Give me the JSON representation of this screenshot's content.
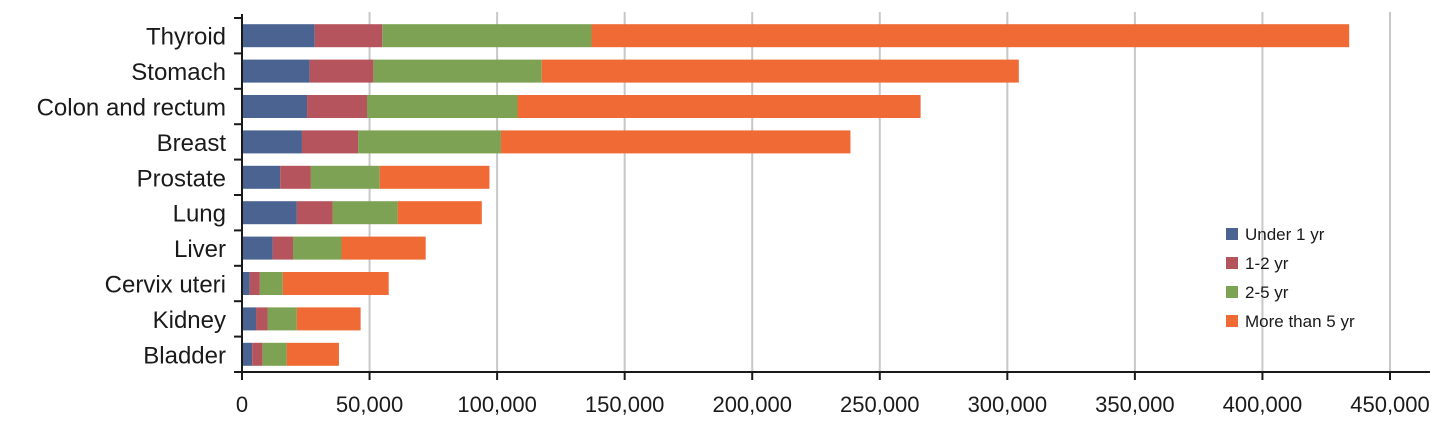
{
  "chart_data": {
    "type": "bar",
    "orientation": "horizontal",
    "stacked": true,
    "categories": [
      "Thyroid",
      "Stomach",
      "Colon and rectum",
      "Breast",
      "Prostate",
      "Lung",
      "Liver",
      "Cervix uteri",
      "Kidney",
      "Bladder"
    ],
    "series": [
      {
        "name": "Under 1 yr",
        "color": "#4a6391",
        "values": [
          28500,
          26500,
          25500,
          23500,
          15000,
          21500,
          12000,
          3000,
          5500,
          4000
        ]
      },
      {
        "name": "1-2 yr",
        "color": "#b5545c",
        "values": [
          26500,
          25000,
          23500,
          22000,
          12000,
          14000,
          8000,
          4000,
          4500,
          4000
        ]
      },
      {
        "name": "2-5 yr",
        "color": "#7da254",
        "values": [
          82000,
          66000,
          59000,
          56000,
          27000,
          25500,
          19000,
          9000,
          11500,
          9500
        ]
      },
      {
        "name": "More than 5 yr",
        "color": "#ef6a34",
        "values": [
          297000,
          187000,
          158000,
          137000,
          43000,
          33000,
          33000,
          41500,
          25000,
          20500
        ]
      }
    ],
    "xlim": [
      0,
      450000
    ],
    "xticks": [
      "0",
      "50,000",
      "100,000",
      "150,000",
      "200,000",
      "250,000",
      "300,000",
      "350,000",
      "400,000",
      "450,000"
    ],
    "grid": "vertical",
    "legend_position": "bottom-right"
  }
}
